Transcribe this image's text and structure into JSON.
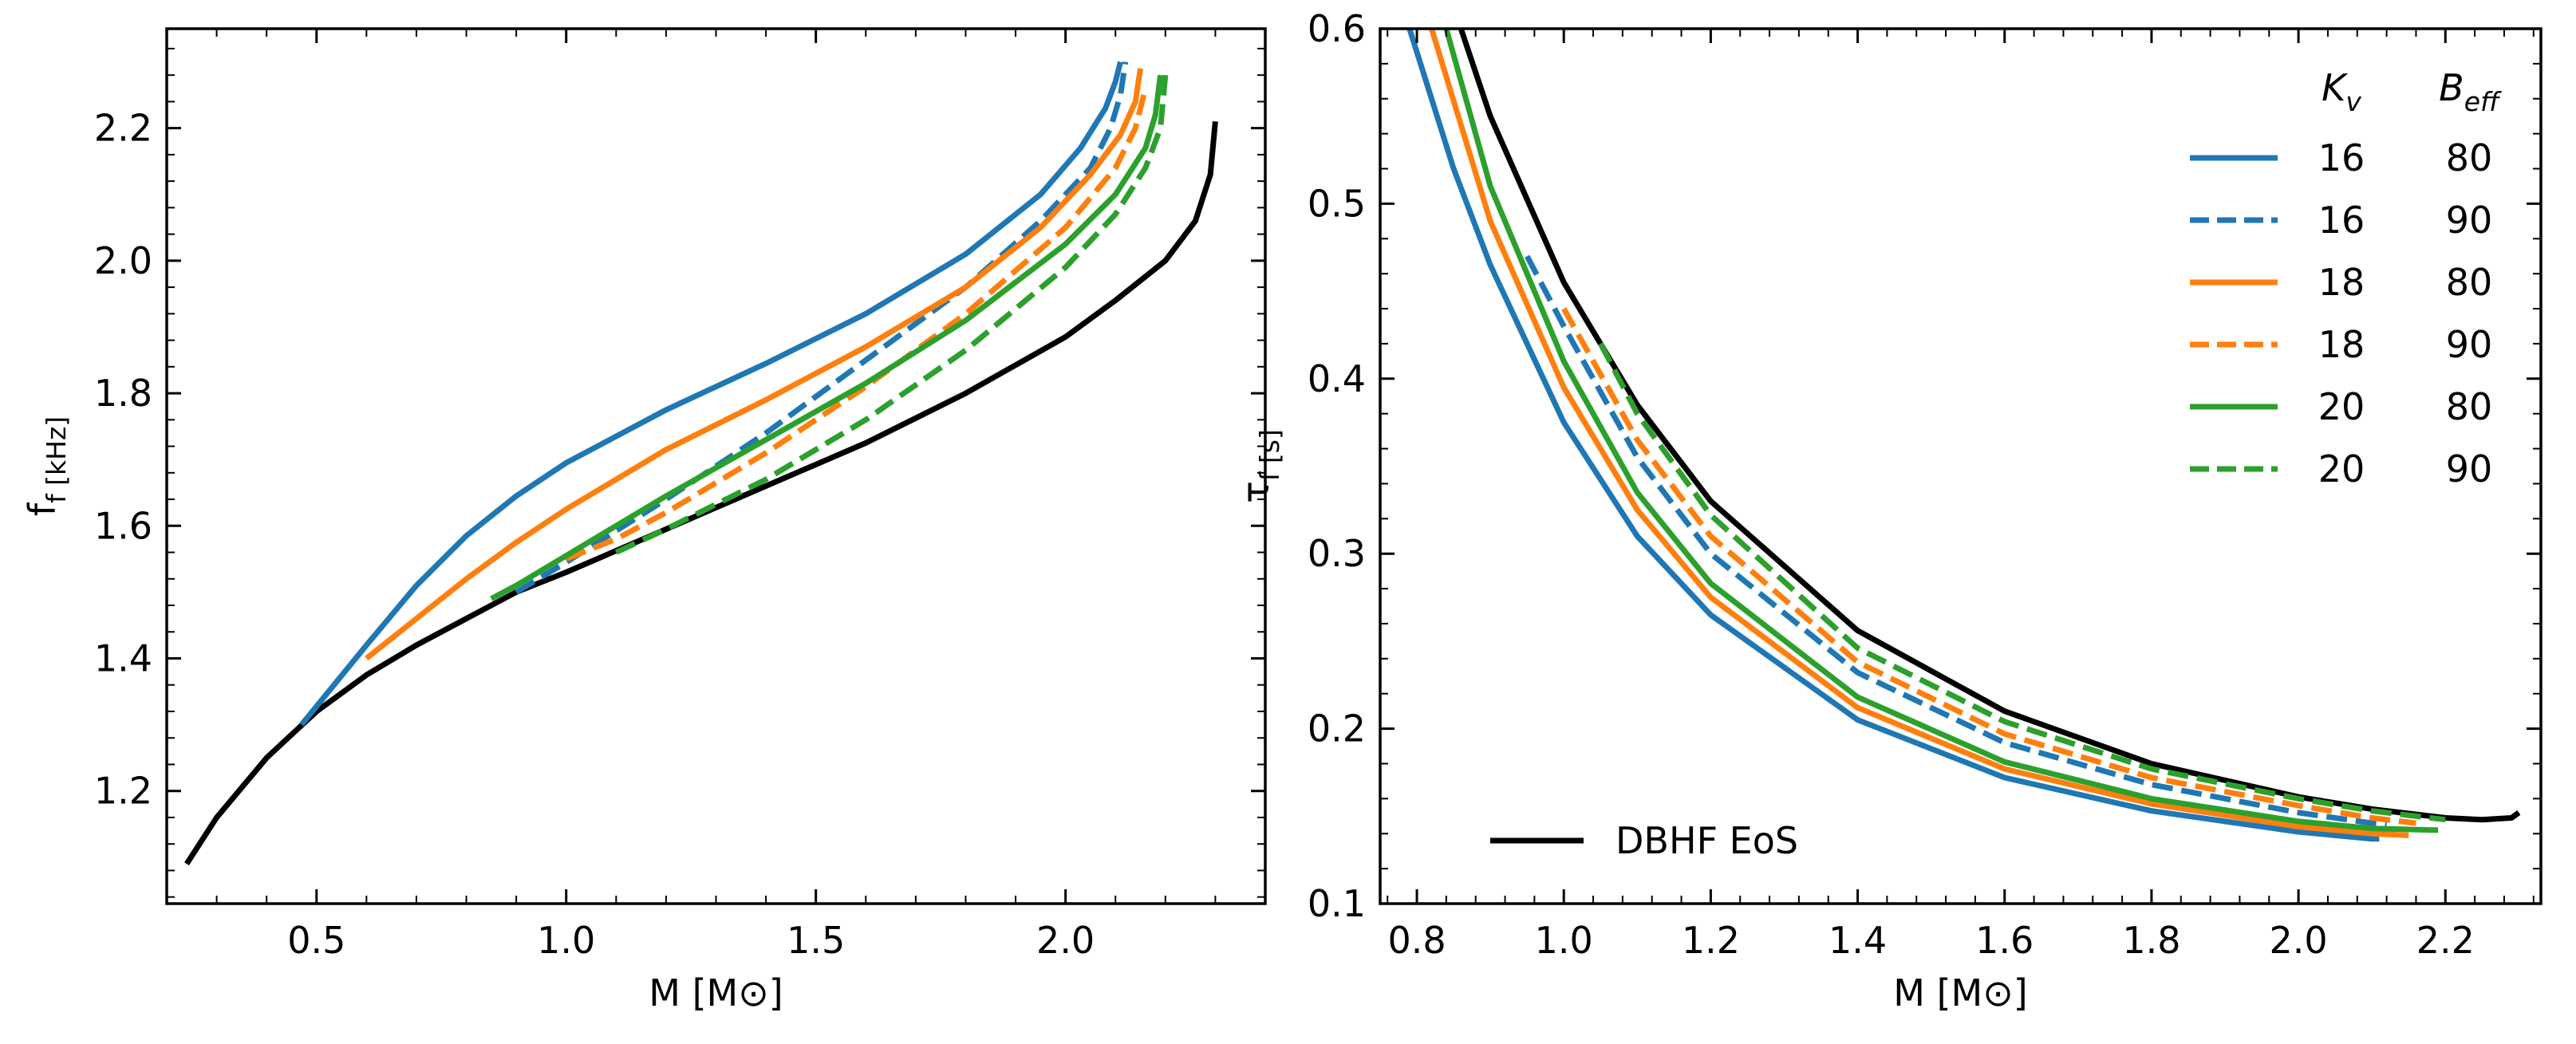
{
  "figure_title": "",
  "chart_data": [
    {
      "type": "line",
      "panel": "left",
      "title": "",
      "xlabel": "M [M⊙]",
      "ylabel": "f_f [kHz]",
      "xlim": [
        0.2,
        2.4
      ],
      "ylim": [
        1.03,
        2.35
      ],
      "xticks": [
        0.5,
        1.0,
        1.5,
        2.0
      ],
      "yticks": [
        1.2,
        1.4,
        1.6,
        1.8,
        2.0,
        2.2
      ],
      "xtick_labels": [
        "0.5",
        "1.0",
        "1.5",
        "2.0"
      ],
      "ytick_labels": [
        "1.2",
        "1.4",
        "1.6",
        "1.8",
        "2.0",
        "2.2"
      ],
      "grid": false,
      "series": [
        {
          "name": "DBHF EoS",
          "color": "#000000",
          "dash": "solid",
          "x": [
            0.24,
            0.3,
            0.4,
            0.5,
            0.6,
            0.7,
            0.8,
            0.9,
            1.0,
            1.2,
            1.4,
            1.6,
            1.8,
            2.0,
            2.1,
            2.2,
            2.26,
            2.29,
            2.3
          ],
          "y": [
            1.09,
            1.16,
            1.25,
            1.32,
            1.375,
            1.42,
            1.46,
            1.5,
            1.53,
            1.595,
            1.66,
            1.725,
            1.8,
            1.885,
            1.94,
            2.0,
            2.06,
            2.13,
            2.21
          ]
        },
        {
          "name": "Kv 16 / Beff 80",
          "color": "#1f77b4",
          "dash": "solid",
          "x": [
            0.47,
            0.6,
            0.7,
            0.8,
            0.9,
            1.0,
            1.2,
            1.4,
            1.6,
            1.8,
            1.95,
            2.03,
            2.08,
            2.1,
            2.11
          ],
          "y": [
            1.3,
            1.42,
            1.51,
            1.585,
            1.645,
            1.695,
            1.775,
            1.845,
            1.92,
            2.01,
            2.1,
            2.17,
            2.23,
            2.27,
            2.3
          ]
        },
        {
          "name": "Kv 16 / Beff 90",
          "color": "#1f77b4",
          "dash": "dashed",
          "x": [
            0.9,
            1.0,
            1.2,
            1.4,
            1.6,
            1.8,
            1.95,
            2.05,
            2.09,
            2.11,
            2.12
          ],
          "y": [
            1.5,
            1.545,
            1.64,
            1.74,
            1.85,
            1.96,
            2.06,
            2.14,
            2.2,
            2.25,
            2.3
          ]
        },
        {
          "name": "Kv 18 / Beff 80",
          "color": "#ff7f0e",
          "dash": "solid",
          "x": [
            0.6,
            0.7,
            0.8,
            0.9,
            1.0,
            1.2,
            1.4,
            1.6,
            1.8,
            1.95,
            2.05,
            2.11,
            2.14,
            2.15
          ],
          "y": [
            1.4,
            1.46,
            1.52,
            1.575,
            1.625,
            1.715,
            1.79,
            1.87,
            1.96,
            2.05,
            2.13,
            2.19,
            2.24,
            2.29
          ]
        },
        {
          "name": "Kv 18 / Beff 90",
          "color": "#ff7f0e",
          "dash": "dashed",
          "x": [
            1.0,
            1.1,
            1.2,
            1.4,
            1.6,
            1.8,
            2.0,
            2.1,
            2.14,
            2.16
          ],
          "y": [
            1.55,
            1.58,
            1.62,
            1.71,
            1.81,
            1.92,
            2.05,
            2.14,
            2.2,
            2.26
          ]
        },
        {
          "name": "Kv 20 / Beff 80",
          "color": "#2ca02c",
          "dash": "solid",
          "x": [
            0.85,
            0.9,
            1.0,
            1.2,
            1.4,
            1.6,
            1.8,
            2.0,
            2.1,
            2.16,
            2.18,
            2.19
          ],
          "y": [
            1.49,
            1.51,
            1.555,
            1.645,
            1.73,
            1.815,
            1.91,
            2.025,
            2.1,
            2.17,
            2.22,
            2.28
          ]
        },
        {
          "name": "Kv 20 / Beff 90",
          "color": "#2ca02c",
          "dash": "dashed",
          "x": [
            1.1,
            1.2,
            1.4,
            1.6,
            1.8,
            2.0,
            2.1,
            2.16,
            2.19,
            2.2
          ],
          "y": [
            1.56,
            1.595,
            1.67,
            1.76,
            1.865,
            1.99,
            2.07,
            2.14,
            2.2,
            2.28
          ]
        }
      ]
    },
    {
      "type": "line",
      "panel": "right",
      "title": "",
      "xlabel": "M [M⊙]",
      "ylabel": "τ_f [s]",
      "xlim": [
        0.75,
        2.33
      ],
      "ylim": [
        0.1,
        0.6
      ],
      "xticks": [
        0.8,
        1.0,
        1.2,
        1.4,
        1.6,
        1.8,
        2.0,
        2.2
      ],
      "yticks": [
        0.1,
        0.2,
        0.3,
        0.4,
        0.5,
        0.6
      ],
      "xtick_labels": [
        "0.8",
        "1.0",
        "1.2",
        "1.4",
        "1.6",
        "1.8",
        "2.0",
        "2.2"
      ],
      "ytick_labels": [
        "0.1",
        "0.2",
        "0.3",
        "0.4",
        "0.5",
        "0.6"
      ],
      "grid": false,
      "legend_header": {
        "col1": "K_v",
        "col2": "B_eff"
      },
      "legend_position": "top-right",
      "legend_entries": [
        {
          "kv": "16",
          "beff": "80",
          "color": "#1f77b4",
          "dash": "solid"
        },
        {
          "kv": "16",
          "beff": "90",
          "color": "#1f77b4",
          "dash": "dashed"
        },
        {
          "kv": "18",
          "beff": "80",
          "color": "#ff7f0e",
          "dash": "solid"
        },
        {
          "kv": "18",
          "beff": "90",
          "color": "#ff7f0e",
          "dash": "dashed"
        },
        {
          "kv": "20",
          "beff": "80",
          "color": "#2ca02c",
          "dash": "solid"
        },
        {
          "kv": "20",
          "beff": "90",
          "color": "#2ca02c",
          "dash": "dashed"
        }
      ],
      "secondary_legend": {
        "label": "DBHF EoS",
        "color": "#000000",
        "position": "bottom-left"
      },
      "series": [
        {
          "name": "DBHF EoS",
          "color": "#000000",
          "dash": "solid",
          "x": [
            0.86,
            0.9,
            1.0,
            1.1,
            1.2,
            1.4,
            1.6,
            1.8,
            2.0,
            2.1,
            2.2,
            2.25,
            2.29,
            2.3
          ],
          "y": [
            0.6,
            0.55,
            0.455,
            0.385,
            0.33,
            0.256,
            0.21,
            0.18,
            0.161,
            0.154,
            0.149,
            0.148,
            0.149,
            0.152
          ]
        },
        {
          "name": "Kv 16 / Beff 80",
          "color": "#1f77b4",
          "dash": "solid",
          "x": [
            0.79,
            0.85,
            0.9,
            1.0,
            1.1,
            1.2,
            1.4,
            1.6,
            1.8,
            2.0,
            2.1,
            2.11
          ],
          "y": [
            0.6,
            0.52,
            0.465,
            0.375,
            0.31,
            0.265,
            0.205,
            0.172,
            0.153,
            0.141,
            0.137,
            0.137
          ]
        },
        {
          "name": "Kv 16 / Beff 90",
          "color": "#1f77b4",
          "dash": "dashed",
          "x": [
            0.95,
            1.0,
            1.1,
            1.2,
            1.4,
            1.6,
            1.8,
            2.0,
            2.1,
            2.12
          ],
          "y": [
            0.47,
            0.43,
            0.355,
            0.3,
            0.232,
            0.192,
            0.168,
            0.152,
            0.146,
            0.145
          ]
        },
        {
          "name": "Kv 18 / Beff 80",
          "color": "#ff7f0e",
          "dash": "solid",
          "x": [
            0.82,
            0.9,
            1.0,
            1.1,
            1.2,
            1.4,
            1.6,
            1.8,
            2.0,
            2.1,
            2.15
          ],
          "y": [
            0.6,
            0.49,
            0.395,
            0.325,
            0.275,
            0.212,
            0.177,
            0.157,
            0.144,
            0.14,
            0.139
          ]
        },
        {
          "name": "Kv 18 / Beff 90",
          "color": "#ff7f0e",
          "dash": "dashed",
          "x": [
            1.0,
            1.1,
            1.2,
            1.4,
            1.6,
            1.8,
            2.0,
            2.1,
            2.16
          ],
          "y": [
            0.44,
            0.365,
            0.31,
            0.238,
            0.197,
            0.172,
            0.156,
            0.149,
            0.146
          ]
        },
        {
          "name": "Kv 20 / Beff 80",
          "color": "#2ca02c",
          "dash": "solid",
          "x": [
            0.84,
            0.9,
            1.0,
            1.1,
            1.2,
            1.4,
            1.6,
            1.8,
            2.0,
            2.1,
            2.19
          ],
          "y": [
            0.6,
            0.51,
            0.41,
            0.335,
            0.283,
            0.218,
            0.181,
            0.16,
            0.147,
            0.143,
            0.142
          ]
        },
        {
          "name": "Kv 20 / Beff 90",
          "color": "#2ca02c",
          "dash": "dashed",
          "x": [
            1.05,
            1.1,
            1.2,
            1.4,
            1.6,
            1.8,
            2.0,
            2.1,
            2.2
          ],
          "y": [
            0.42,
            0.38,
            0.322,
            0.246,
            0.204,
            0.177,
            0.16,
            0.153,
            0.148
          ]
        }
      ]
    }
  ]
}
